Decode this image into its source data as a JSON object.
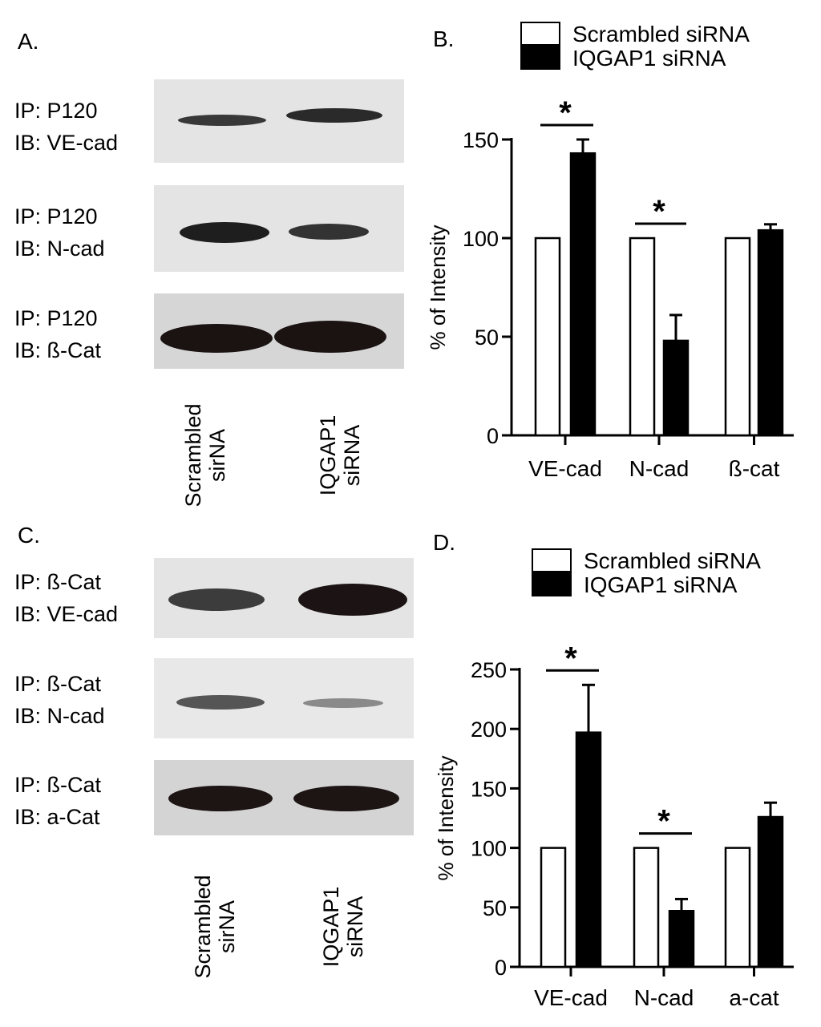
{
  "panelA": {
    "letter": "A.",
    "blots": [
      {
        "ip": "IP: P120",
        "ib": "IB: VE-cad"
      },
      {
        "ip": "IP: P120",
        "ib": "IB: N-cad"
      },
      {
        "ip": "IP: P120",
        "ib": "IB: ß-Cat"
      }
    ],
    "lanes": [
      {
        "line1": "Scrambled",
        "line2": "sirNA"
      },
      {
        "line1": "IQGAP1",
        "line2": "siRNA"
      }
    ]
  },
  "panelC": {
    "letter": "C.",
    "blots": [
      {
        "ip": "IP: ß-Cat",
        "ib": "IB: VE-cad"
      },
      {
        "ip": "IP: ß-Cat",
        "ib": "IB: N-cad"
      },
      {
        "ip": "IP: ß-Cat",
        "ib": "IB: a-Cat"
      }
    ],
    "lanes": [
      {
        "line1": "Scrambled",
        "line2": "sirNA"
      },
      {
        "line1": "IQGAP1",
        "line2": "siRNA"
      }
    ]
  },
  "chart_data": [
    {
      "type": "bar",
      "panel": "B.",
      "categories": [
        "VE-cad",
        "N-cad",
        "ß-cat"
      ],
      "series": [
        {
          "name": "Scrambled siRNA",
          "values": [
            100,
            100,
            100
          ],
          "errors": [
            0,
            0,
            0
          ],
          "fill": "#ffffff"
        },
        {
          "name": "IQGAP1 siRNA",
          "values": [
            143,
            48,
            104
          ],
          "errors": [
            7,
            13,
            3
          ],
          "fill": "#000000"
        }
      ],
      "ylabel": "% of Intensity",
      "ylim": [
        0,
        150
      ],
      "yticks": [
        0,
        50,
        100,
        150
      ],
      "significance": [
        "*",
        "*",
        ""
      ],
      "legend": "top-right"
    },
    {
      "type": "bar",
      "panel": "D.",
      "categories": [
        "VE-cad",
        "N-cad",
        "a-cat"
      ],
      "series": [
        {
          "name": "Scrambled siRNA",
          "values": [
            100,
            100,
            100
          ],
          "errors": [
            0,
            0,
            0
          ],
          "fill": "#ffffff"
        },
        {
          "name": "IQGAP1 siRNA",
          "values": [
            197,
            47,
            126
          ],
          "errors": [
            40,
            10,
            12
          ],
          "fill": "#000000"
        }
      ],
      "ylabel": "% of Intensity",
      "ylim": [
        0,
        250
      ],
      "yticks": [
        0,
        50,
        100,
        150,
        200,
        250
      ],
      "significance": [
        "*",
        "*",
        ""
      ],
      "legend": "top-right"
    }
  ]
}
